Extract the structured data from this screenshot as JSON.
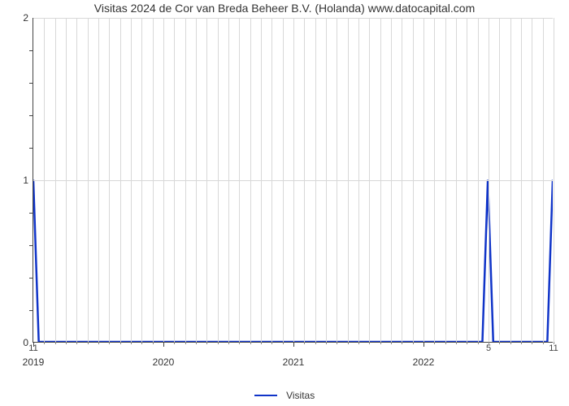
{
  "chart": {
    "type": "line",
    "title": "Visitas 2024 de Cor van Breda Beheer B.V. (Holanda) www.datocapital.com",
    "title_fontsize": 14,
    "title_color": "#333333",
    "background_color": "#ffffff",
    "grid_color": "#d8d8d8",
    "axis_color": "#444444",
    "label_color": "#333333",
    "label_fontsize": 12,
    "y": {
      "lim": [
        0,
        2
      ],
      "major_ticks": [
        0,
        1,
        2
      ],
      "minor_ticks_between": 4
    },
    "x": {
      "months_span": 48,
      "major_year_labels": [
        "2019",
        "2020",
        "2021",
        "2022"
      ],
      "major_year_month_index": [
        0,
        12,
        24,
        36
      ],
      "grid_month_indices": [
        0,
        1,
        2,
        3,
        4,
        5,
        6,
        7,
        8,
        9,
        10,
        11,
        12,
        13,
        14,
        15,
        16,
        17,
        18,
        19,
        20,
        21,
        22,
        23,
        24,
        25,
        26,
        27,
        28,
        29,
        30,
        31,
        32,
        33,
        34,
        35,
        36,
        37,
        38,
        39,
        40,
        41,
        42,
        43,
        44,
        45,
        46,
        47,
        48
      ],
      "minor_markers": [
        {
          "month_index": 0,
          "label": "11"
        },
        {
          "month_index": 42,
          "label": "5"
        },
        {
          "month_index": 48,
          "label": "11"
        }
      ]
    },
    "series": {
      "name": "Visitas",
      "color": "#1034c8",
      "line_width": 2.5,
      "points": [
        {
          "m": 0,
          "v": 1
        },
        {
          "m": 0.5,
          "v": 0
        },
        {
          "m": 41.5,
          "v": 0
        },
        {
          "m": 42,
          "v": 1
        },
        {
          "m": 42.5,
          "v": 0
        },
        {
          "m": 47.5,
          "v": 0
        },
        {
          "m": 48,
          "v": 1
        }
      ]
    },
    "legend": {
      "label": "Visitas",
      "swatch_color": "#1034c8",
      "swatch_width": 2.5
    }
  }
}
